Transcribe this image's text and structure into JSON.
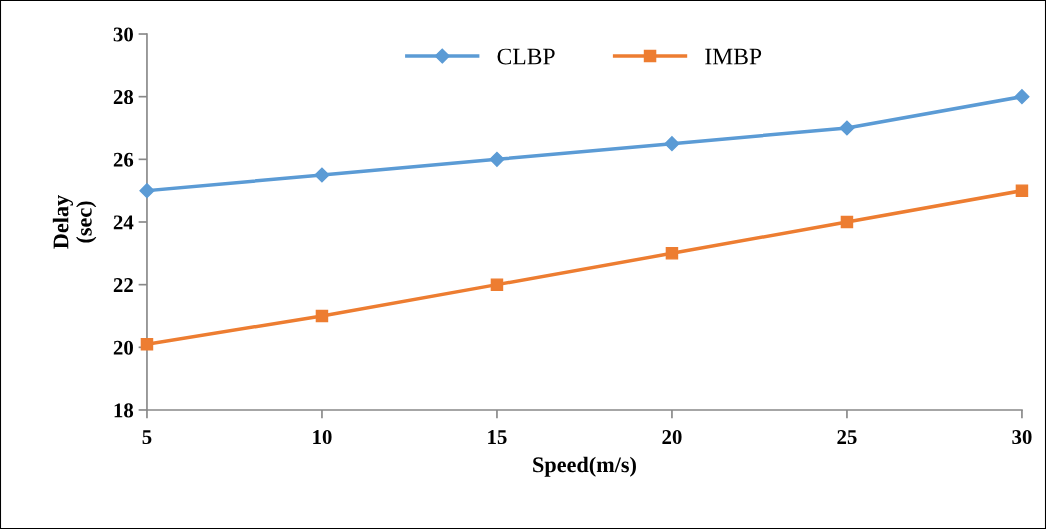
{
  "chart_data": {
    "type": "line",
    "xlabel": "Speed(m/s)",
    "ylabel": "Delay\n(sec)",
    "x": [
      5,
      10,
      15,
      20,
      25,
      30
    ],
    "series": [
      {
        "name": "CLBP",
        "color": "#5b9bd5",
        "marker": "diamond",
        "values": [
          25,
          25.5,
          26,
          26.5,
          27,
          28
        ]
      },
      {
        "name": "IMBP",
        "color": "#ed7d31",
        "marker": "square",
        "values": [
          20.1,
          21,
          22,
          23,
          24,
          25
        ]
      }
    ],
    "xlim": [
      5,
      30
    ],
    "xticks": [
      5,
      10,
      15,
      20,
      25,
      30
    ],
    "ylim": [
      18,
      30
    ],
    "yticks": [
      18,
      20,
      22,
      24,
      26,
      28,
      30
    ],
    "grid": false,
    "legend": "top",
    "line_style": "solid"
  }
}
